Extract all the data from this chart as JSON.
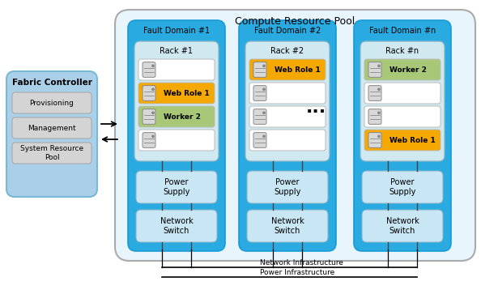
{
  "title": "Compute Resource Pool",
  "bg_color": "#ffffff",
  "compute_pool_bg": "#e8f5fc",
  "fault_domain_bg": "#29abe2",
  "rack_bg": "#d0e8f0",
  "power_bg": "#c8e6f4",
  "netswitch_bg": "#c8e6f4",
  "fabric_bg": "#aacfe8",
  "item_bg": "#d4d4d4",
  "web_role_color": "#f5a800",
  "worker_color": "#a8c878",
  "slot_empty_color": "#ffffff",
  "slot_border": "#bbbbbb",
  "icon_bg": "#d8d8d8",
  "icon_border": "#888888",
  "fd_border": "#1a9ad4",
  "crp_border": "#aaaaaa",
  "fabric_border": "#7ab8d8",
  "fabric_controller_label": "Fabric Controller",
  "provisioning_label": "Provisioning",
  "management_label": "Management",
  "system_resource_pool_label": "System Resource\nPool",
  "power_supply_label": "Power\nSupply",
  "network_switch_label": "Network\nSwitch",
  "network_infra_label": "Network Infrastructure",
  "power_infra_label": "Power Infrastructure",
  "dots_label": "...",
  "fault_domains": [
    {
      "label": "Fault Domain #1",
      "rack_label": "Rack #1",
      "slots": [
        {
          "type": "empty"
        },
        {
          "type": "web_role",
          "label": "Web Role 1"
        },
        {
          "type": "worker",
          "label": "Worker 2"
        },
        {
          "type": "empty"
        }
      ]
    },
    {
      "label": "Fault Domain #2",
      "rack_label": "Rack #2",
      "slots": [
        {
          "type": "web_role",
          "label": "Web Role 1"
        },
        {
          "type": "empty"
        },
        {
          "type": "empty"
        },
        {
          "type": "empty"
        }
      ]
    },
    {
      "label": "Fault Domain #n",
      "rack_label": "Rack #n",
      "slots": [
        {
          "type": "worker",
          "label": "Worker 2"
        },
        {
          "type": "empty"
        },
        {
          "type": "empty"
        },
        {
          "type": "web_role",
          "label": "Web Role 1"
        }
      ]
    }
  ]
}
